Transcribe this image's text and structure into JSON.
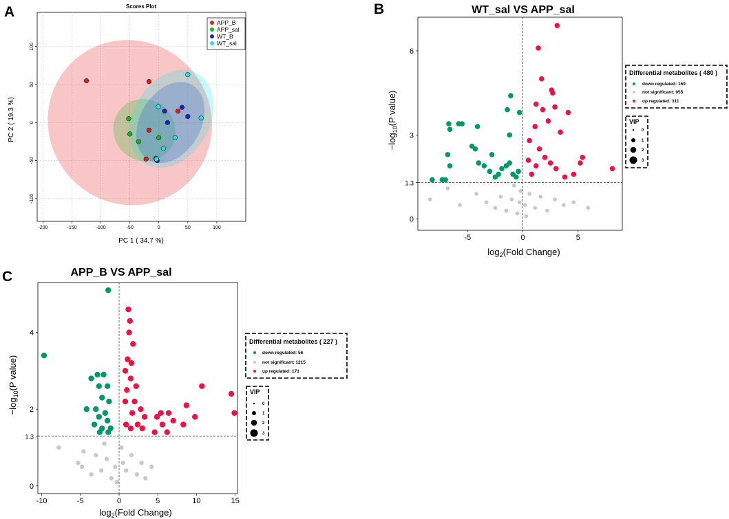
{
  "panels": {
    "a": "A",
    "b": "B",
    "c": "C"
  },
  "colors": {
    "app_b": "#e31a1c",
    "app_sal": "#1fb31f",
    "wt_b": "#1f1fcc",
    "wt_sal": "#22e5e5",
    "down": "#009966",
    "ns": "#c8c8c8",
    "up": "#ee1144"
  },
  "chart_data": [
    {
      "id": "scores",
      "type": "scatter",
      "title": "Scores Plot",
      "xlabel": "PC 1 ( 34.7 %)",
      "ylabel": "PC 2 ( 19.3 %)",
      "xlim": [
        -210,
        150
      ],
      "ylim": [
        -130,
        145
      ],
      "xticks": [
        -200,
        -150,
        -100,
        -50,
        0,
        50,
        100
      ],
      "yticks": [
        -100,
        -50,
        0,
        50,
        100
      ],
      "legend": [
        "APP_B",
        "APP_sal",
        "WT_B",
        "WT_sal"
      ],
      "series": [
        {
          "name": "APP_B",
          "points": [
            [
              -125,
              55
            ],
            [
              -17,
              54
            ],
            [
              -17,
              -10
            ],
            [
              -22,
              -48
            ],
            [
              -3,
              -50
            ],
            [
              33,
              15
            ]
          ]
        },
        {
          "name": "APP_sal",
          "points": [
            [
              -52,
              5
            ],
            [
              -50,
              -15
            ],
            [
              -35,
              -25
            ],
            [
              -5,
              -47
            ],
            [
              0,
              -20
            ],
            [
              -5,
              -48
            ]
          ]
        },
        {
          "name": "WT_B",
          "points": [
            [
              10,
              15
            ],
            [
              15,
              0
            ],
            [
              40,
              20
            ],
            [
              50,
              8
            ],
            [
              -4,
              -49
            ],
            [
              -3,
              -50
            ]
          ]
        },
        {
          "name": "WT_sal",
          "points": [
            [
              -1,
              21
            ],
            [
              8,
              -34
            ],
            [
              28,
              -20
            ],
            [
              50,
              63
            ],
            [
              73,
              6
            ],
            [
              -4,
              -48
            ]
          ]
        }
      ],
      "ellipses": [
        {
          "name": "APP_B",
          "cx": -50,
          "cy": 0,
          "rx": 140,
          "ry": 110,
          "angle": 38
        },
        {
          "name": "APP_sal",
          "cx": -25,
          "cy": -10,
          "rx": 55,
          "ry": 40,
          "angle": -47
        },
        {
          "name": "WT_B",
          "cx": 20,
          "cy": 0,
          "rx": 75,
          "ry": 40,
          "angle": 60
        },
        {
          "name": "WT_sal",
          "cx": 22,
          "cy": 5,
          "rx": 90,
          "ry": 50,
          "angle": 60
        }
      ]
    },
    {
      "id": "volcano_b",
      "type": "scatter",
      "title": "WT_sal VS APP_sal",
      "xlabel": "log2(Fold Change)",
      "ylabel": "-log10(P value)",
      "xlim": [
        -9.5,
        9
      ],
      "ylim": [
        -0.4,
        7.2
      ],
      "xticks": [
        -5,
        0,
        5
      ],
      "yticks": [
        0,
        1.3,
        3,
        6
      ],
      "threshold": 1.3,
      "legend_title": "Differential metabolites ( 480 )",
      "legend_items": [
        "down regulated: 169",
        "not significant: 955",
        "up regulated: 311"
      ],
      "vip_title": "VIP",
      "vip_levels": [
        "0",
        "1",
        "2",
        "3"
      ],
      "down_points": [
        [
          -6.7,
          3.4
        ],
        [
          -6.6,
          3.2
        ],
        [
          -5.8,
          3.4
        ],
        [
          -5.5,
          3.4
        ],
        [
          -4.1,
          3.3
        ],
        [
          -6.8,
          2.3
        ],
        [
          -6.6,
          1.9
        ],
        [
          -7.3,
          1.4
        ],
        [
          -8.2,
          1.4
        ],
        [
          -7.0,
          1.4
        ],
        [
          -4.6,
          2.6
        ],
        [
          -4.3,
          2.5
        ],
        [
          -4.0,
          2.0
        ],
        [
          -3.5,
          1.9
        ],
        [
          -1.1,
          4.4
        ],
        [
          -1.4,
          3.9
        ],
        [
          -0.3,
          3.8
        ],
        [
          -1.2,
          3.0
        ],
        [
          -3.0,
          1.7
        ],
        [
          -2.5,
          1.5
        ],
        [
          -2.2,
          1.6
        ],
        [
          -1.9,
          1.8
        ],
        [
          -1.5,
          1.9
        ],
        [
          -1.2,
          2.0
        ],
        [
          -0.9,
          1.6
        ],
        [
          -0.6,
          1.5
        ],
        [
          -0.4,
          1.7
        ],
        [
          -2.8,
          2.3
        ]
      ],
      "up_points": [
        [
          3.1,
          6.9
        ],
        [
          1.4,
          6.1
        ],
        [
          1.7,
          5.0
        ],
        [
          2.6,
          4.6
        ],
        [
          2.7,
          4.5
        ],
        [
          1.2,
          4.1
        ],
        [
          1.8,
          3.9
        ],
        [
          2.9,
          4.0
        ],
        [
          4.1,
          3.8
        ],
        [
          2.3,
          3.5
        ],
        [
          1.1,
          3.3
        ],
        [
          3.4,
          3.1
        ],
        [
          5.4,
          2.2
        ],
        [
          5.2,
          2.0
        ],
        [
          8.1,
          1.8
        ],
        [
          4.6,
          1.6
        ],
        [
          3.8,
          1.5
        ],
        [
          3.0,
          1.8
        ],
        [
          2.5,
          2.0
        ],
        [
          2.0,
          2.2
        ],
        [
          1.5,
          2.5
        ],
        [
          0.6,
          2.8
        ],
        [
          0.8,
          1.6
        ],
        [
          1.2,
          1.9
        ],
        [
          0.5,
          2.1
        ]
      ],
      "ns_points": [
        [
          -8.4,
          0.7
        ],
        [
          -6.8,
          1.1
        ],
        [
          -5.7,
          0.5
        ],
        [
          -4.2,
          0.9
        ],
        [
          -3.3,
          0.6
        ],
        [
          -2.5,
          0.4
        ],
        [
          -2.0,
          0.8
        ],
        [
          -1.5,
          0.3
        ],
        [
          -1.0,
          0.7
        ],
        [
          -0.5,
          0.2
        ],
        [
          -0.2,
          1.0
        ],
        [
          0.2,
          0.5
        ],
        [
          0.6,
          0.9
        ],
        [
          1.1,
          0.4
        ],
        [
          1.6,
          0.8
        ],
        [
          2.2,
          0.3
        ],
        [
          2.9,
          0.7
        ],
        [
          3.7,
          0.5
        ],
        [
          4.6,
          0.6
        ],
        [
          5.9,
          0.4
        ],
        [
          0.3,
          0.1
        ],
        [
          -0.8,
          1.2
        ],
        [
          -0.3,
          0.6
        ]
      ]
    },
    {
      "id": "volcano_c",
      "type": "scatter",
      "title": "APP_B VS APP_sal",
      "xlabel": "log2(Fold Change)",
      "ylabel": "-log10(P value)",
      "xlim": [
        -10.5,
        15.3
      ],
      "ylim": [
        -0.2,
        5.3
      ],
      "xticks": [
        -10,
        -5,
        0,
        5,
        10,
        15
      ],
      "yticks": [
        0,
        1.3,
        2,
        4
      ],
      "threshold": 1.3,
      "legend_title": "Differential metabolites ( 227 )",
      "legend_items": [
        "down regulated: 56",
        "not significant: 1215",
        "up regulated: 171"
      ],
      "vip_title": "VIP",
      "vip_levels": [
        "0",
        "1",
        "2",
        "3"
      ],
      "down_points": [
        [
          -1.4,
          5.1
        ],
        [
          -9.7,
          3.4
        ],
        [
          -2.8,
          2.9
        ],
        [
          -2.0,
          2.9
        ],
        [
          -3.6,
          2.8
        ],
        [
          -2.6,
          2.6
        ],
        [
          -1.5,
          2.6
        ],
        [
          -2.2,
          2.3
        ],
        [
          -1.3,
          2.2
        ],
        [
          -4.2,
          2.0
        ],
        [
          -3.0,
          2.0
        ],
        [
          -1.8,
          1.9
        ],
        [
          -2.6,
          1.8
        ],
        [
          -1.5,
          1.7
        ],
        [
          -3.2,
          1.6
        ],
        [
          -2.2,
          1.5
        ],
        [
          -1.1,
          1.5
        ],
        [
          -2.5,
          1.4
        ],
        [
          -1.4,
          1.4
        ]
      ],
      "up_points": [
        [
          1.2,
          4.6
        ],
        [
          1.4,
          4.3
        ],
        [
          1.3,
          4.0
        ],
        [
          1.8,
          3.7
        ],
        [
          1.1,
          3.3
        ],
        [
          1.6,
          3.2
        ],
        [
          0.8,
          3.0
        ],
        [
          1.5,
          2.8
        ],
        [
          2.2,
          2.6
        ],
        [
          1.0,
          2.5
        ],
        [
          0.8,
          2.2
        ],
        [
          2.0,
          2.2
        ],
        [
          2.8,
          2.0
        ],
        [
          1.7,
          1.9
        ],
        [
          3.3,
          1.8
        ],
        [
          2.4,
          1.6
        ],
        [
          1.5,
          1.5
        ],
        [
          3.0,
          1.5
        ],
        [
          0.9,
          1.6
        ],
        [
          4.9,
          1.8
        ],
        [
          5.4,
          1.9
        ],
        [
          6.4,
          1.9
        ],
        [
          7.0,
          1.7
        ],
        [
          5.6,
          1.6
        ],
        [
          4.6,
          1.4
        ],
        [
          6.2,
          1.4
        ],
        [
          8.3,
          1.6
        ],
        [
          8.7,
          2.1
        ],
        [
          9.8,
          1.8
        ],
        [
          10.7,
          2.6
        ],
        [
          14.5,
          2.4
        ],
        [
          14.9,
          1.9
        ]
      ],
      "ns_points": [
        [
          -7.8,
          1.0
        ],
        [
          -5.3,
          0.6
        ],
        [
          -4.8,
          0.5
        ],
        [
          -4.6,
          0.9
        ],
        [
          -3.6,
          0.3
        ],
        [
          -3.0,
          0.8
        ],
        [
          -2.3,
          0.4
        ],
        [
          -1.6,
          0.7
        ],
        [
          -1.0,
          0.2
        ],
        [
          -0.5,
          0.5
        ],
        [
          0.3,
          1.0
        ],
        [
          0.9,
          0.4
        ],
        [
          1.6,
          0.8
        ],
        [
          2.3,
          0.3
        ],
        [
          2.9,
          0.6
        ],
        [
          3.4,
          0.2
        ],
        [
          4.2,
          0.5
        ],
        [
          -0.3,
          0.1
        ],
        [
          0.5,
          0.6
        ],
        [
          -1.9,
          1.1
        ]
      ]
    }
  ]
}
